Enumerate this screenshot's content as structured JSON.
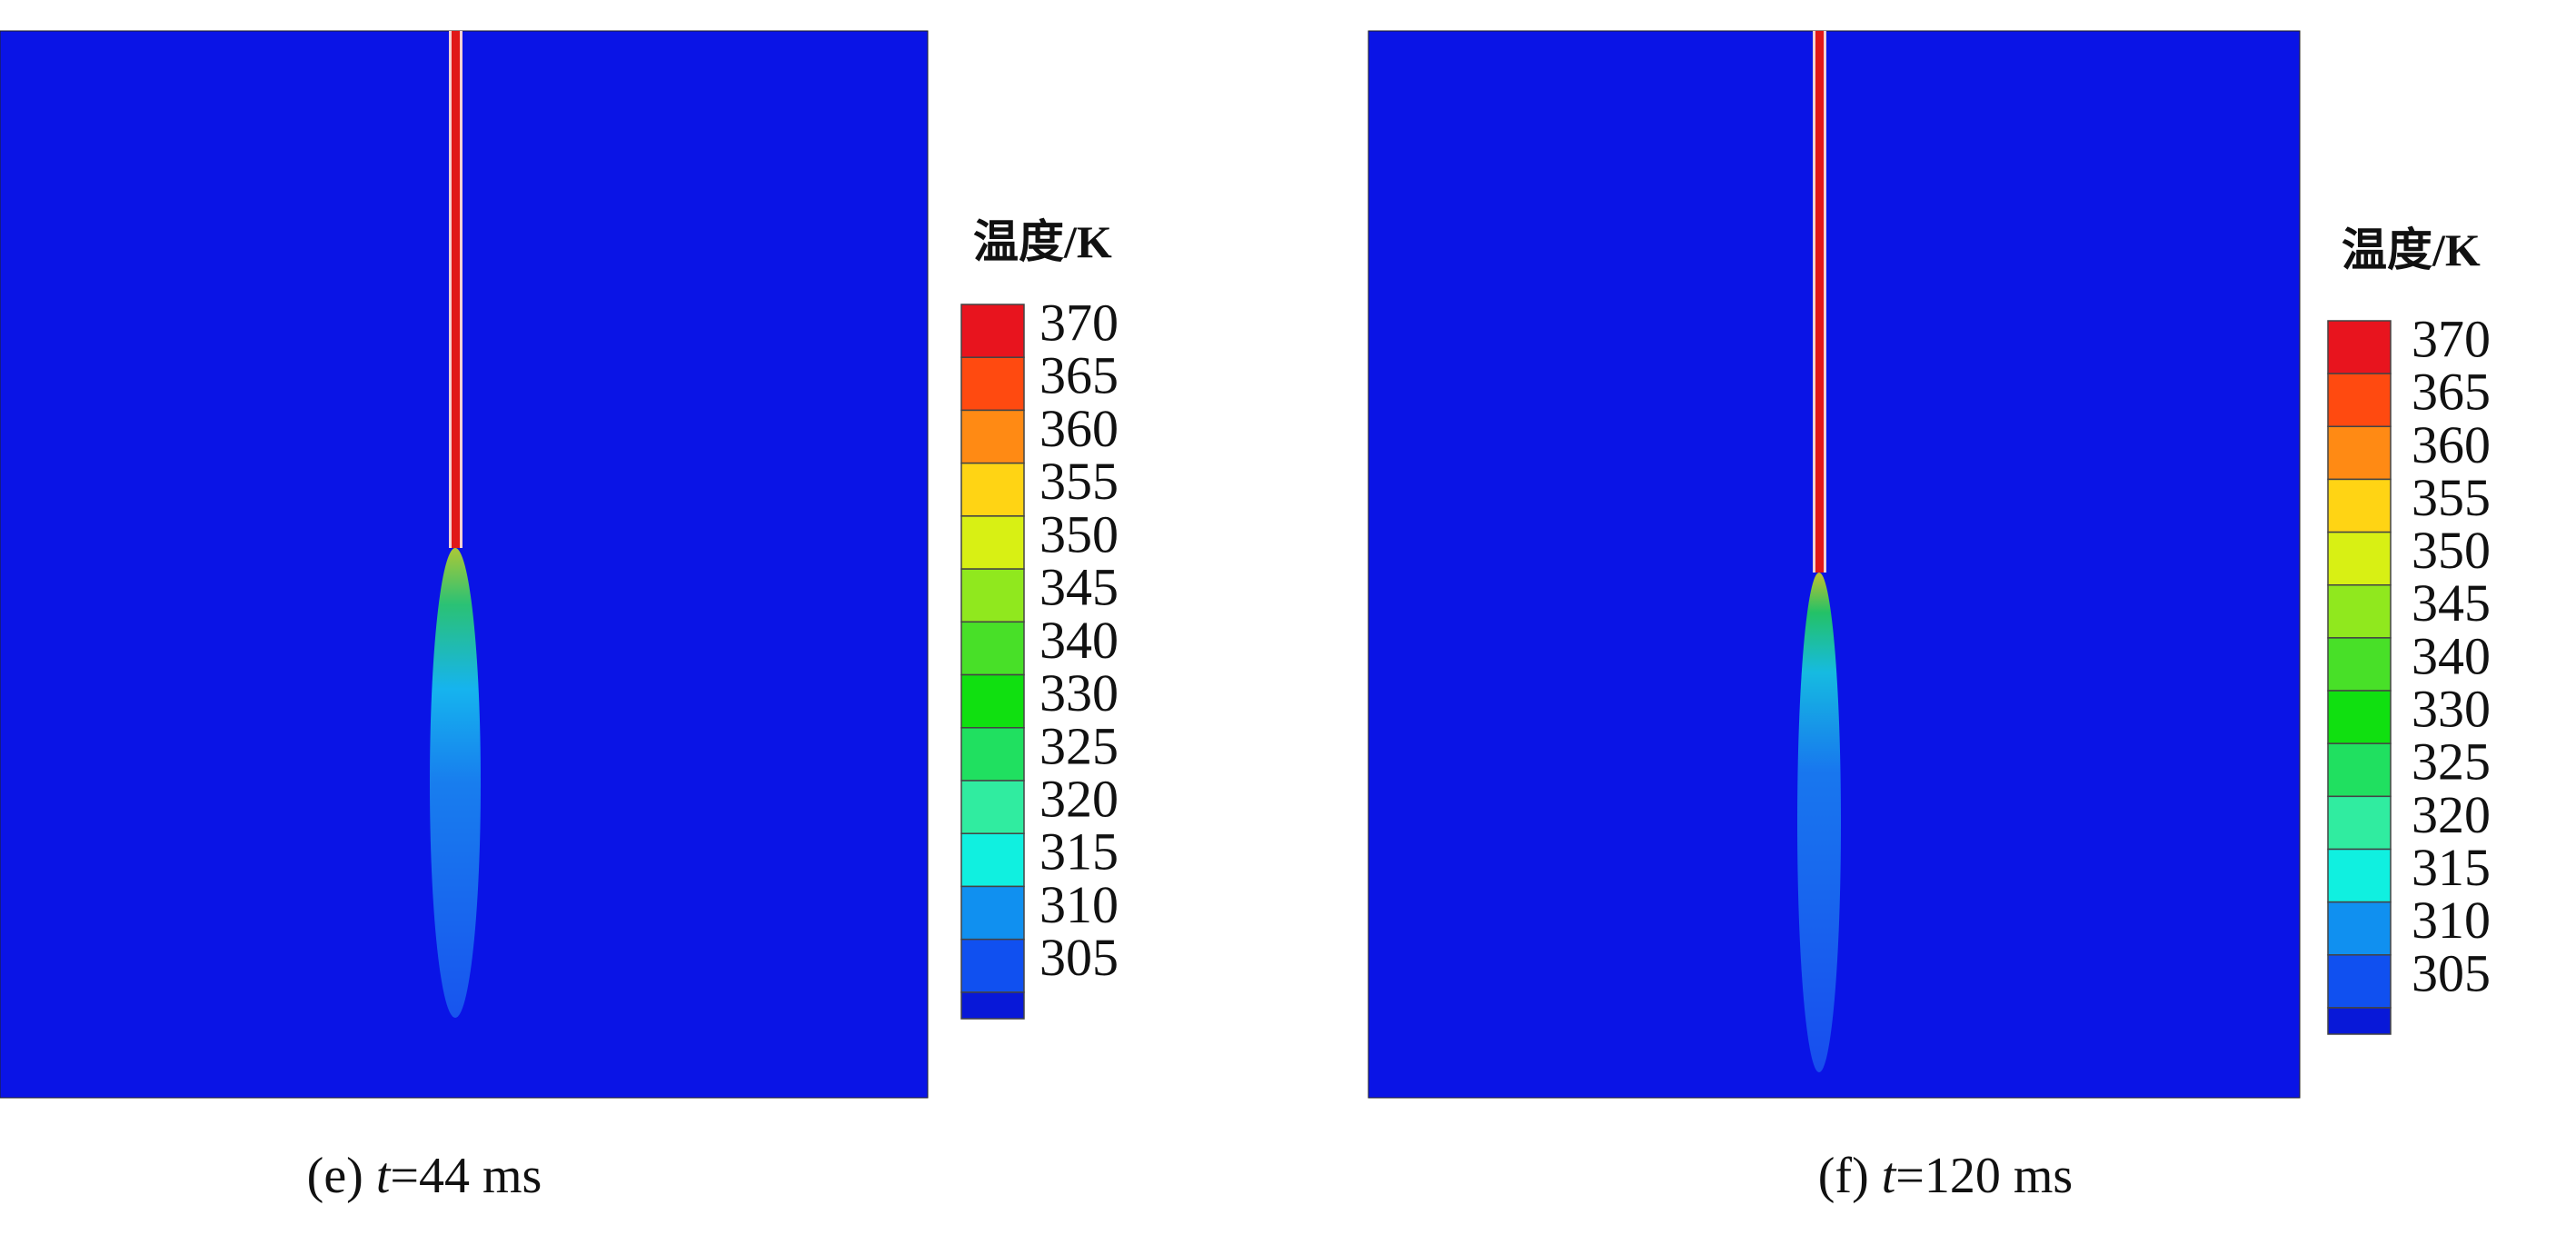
{
  "panels": [
    {
      "legend_title": "温度/K",
      "legend_labels": [
        370,
        365,
        360,
        355,
        350,
        345,
        340,
        330,
        325,
        320,
        315,
        310,
        305
      ],
      "caption": {
        "label": "(e)",
        "variable": "t",
        "value": "=44 ms"
      }
    },
    {
      "legend_title": "温度/K",
      "legend_labels": [
        370,
        365,
        360,
        355,
        350,
        345,
        340,
        330,
        325,
        320,
        315,
        310,
        305
      ],
      "caption": {
        "label": "(f)",
        "variable": "t",
        "value": "=120 ms"
      }
    }
  ]
}
